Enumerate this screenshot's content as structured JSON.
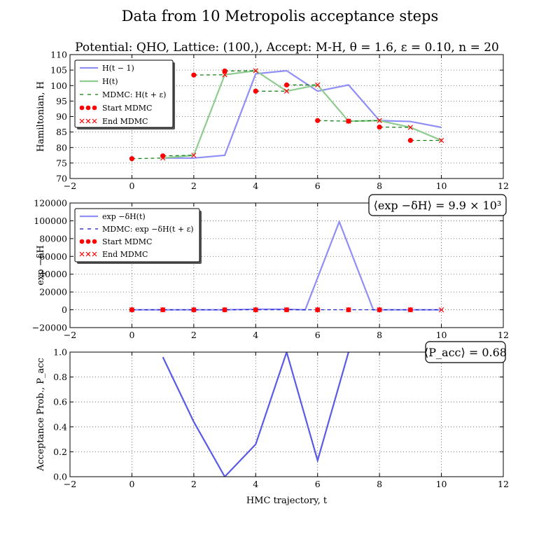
{
  "figure": {
    "title": "Data from 10 Metropolis acceptance steps",
    "subtitle": "Potential: QHO, Lattice: (100,), Accept: M-H, θ = 1.6, ε = 0.10, n = 20"
  },
  "colors": {
    "h_prev": "#8f8ff5",
    "h_curr": "#8fcc8f",
    "mdmc_green": "#0a7a0a",
    "mdmc_blue": "#1010c8",
    "marker": "#ff0000",
    "acc": "#5a5ae6",
    "grid": "#555555"
  },
  "chart_data": [
    {
      "type": "line",
      "panel": "hamiltonian",
      "xlabel": "",
      "ylabel": "Hamiltonian, H",
      "xlim": [
        -2,
        12
      ],
      "ylim": [
        70,
        110
      ],
      "xticks": [
        -2,
        0,
        2,
        4,
        6,
        8,
        10,
        12
      ],
      "yticks": [
        70,
        75,
        80,
        85,
        90,
        95,
        100,
        105,
        110
      ],
      "grid": true,
      "legend_position": "top-left",
      "series": [
        {
          "name": "H(t − 1)",
          "style": "line",
          "x": [
            1,
            2,
            3,
            4,
            5,
            6,
            7,
            8,
            9,
            10
          ],
          "y": [
            76.6,
            76.6,
            77.5,
            103.8,
            104.8,
            98.2,
            100.2,
            88.7,
            88.4,
            86.5
          ]
        },
        {
          "name": "H(t)",
          "style": "line",
          "x": [
            1,
            2,
            3,
            4,
            5,
            6,
            7,
            8,
            9,
            10
          ],
          "y": [
            76.6,
            77.5,
            103.5,
            104.8,
            98.2,
            100.2,
            88.5,
            88.7,
            86.5,
            82.3
          ]
        },
        {
          "name": "MDMC: H(t + ε)",
          "style": "dashed-segments",
          "segments": [
            [
              0,
              76.4,
              1,
              76.6
            ],
            [
              1,
              77.3,
              2,
              77.5
            ],
            [
              2,
              103.4,
              3,
              103.5
            ],
            [
              3,
              104.7,
              4,
              104.8
            ],
            [
              4,
              98.2,
              5,
              98.2
            ],
            [
              5,
              100.2,
              6,
              100.2
            ],
            [
              6,
              88.7,
              7,
              88.5
            ],
            [
              7,
              88.5,
              8,
              88.7
            ],
            [
              8,
              86.6,
              9,
              86.5
            ],
            [
              9,
              82.3,
              10,
              82.3
            ]
          ]
        },
        {
          "name": "Start MDMC",
          "style": "points",
          "x": [
            0,
            1,
            2,
            3,
            4,
            5,
            6,
            7,
            8,
            9
          ],
          "y": [
            76.4,
            77.3,
            103.4,
            104.7,
            98.2,
            100.2,
            88.7,
            88.5,
            86.6,
            82.3
          ]
        },
        {
          "name": "End MDMC",
          "style": "crosses",
          "x": [
            1,
            2,
            3,
            4,
            5,
            6,
            7,
            8,
            9,
            10
          ],
          "y": [
            76.6,
            77.5,
            103.5,
            104.8,
            98.2,
            100.2,
            88.5,
            88.7,
            86.5,
            82.3
          ]
        }
      ]
    },
    {
      "type": "line",
      "panel": "boltzmann",
      "xlabel": "",
      "ylabel": "exp −δH",
      "xlim": [
        -2,
        12
      ],
      "ylim": [
        -20000,
        120000
      ],
      "xticks": [
        -2,
        0,
        2,
        4,
        6,
        8,
        10,
        12
      ],
      "yticks": [
        -20000,
        0,
        20000,
        40000,
        60000,
        80000,
        100000,
        120000
      ],
      "grid": true,
      "legend_position": "top-left",
      "annotation": "⟨exp −δH⟩ = 9.9 × 10³",
      "series": [
        {
          "name": "exp −δH(t)",
          "style": "line",
          "x": [
            0,
            1,
            2,
            3,
            4,
            5,
            5.6,
            6.7,
            7.8,
            8,
            9,
            10
          ],
          "y": [
            0,
            0,
            0,
            0,
            700,
            700,
            0,
            99000,
            0,
            0,
            0,
            0
          ]
        },
        {
          "name": "MDMC: exp −δH(t + ε)",
          "style": "dashed",
          "x": [
            0,
            10
          ],
          "y": [
            0,
            0
          ]
        },
        {
          "name": "Start MDMC",
          "style": "points",
          "x": [
            0,
            1,
            2,
            3,
            4,
            5,
            6,
            7,
            8,
            9
          ],
          "y": [
            0,
            0,
            0,
            0,
            0,
            0,
            0,
            0,
            0,
            0
          ]
        },
        {
          "name": "End MDMC",
          "style": "crosses",
          "x": [
            0,
            1,
            2,
            3,
            4,
            5,
            6,
            7,
            8,
            9,
            10
          ],
          "y": [
            0,
            0,
            0,
            0,
            0,
            0,
            0,
            0,
            0,
            0,
            0
          ]
        }
      ]
    },
    {
      "type": "line",
      "panel": "acceptance",
      "xlabel": "HMC trajectory, t",
      "ylabel": "Acceptance Prob., P_acc",
      "xlim": [
        -2,
        12
      ],
      "ylim": [
        0,
        1
      ],
      "xticks": [
        -2,
        0,
        2,
        4,
        6,
        8,
        10,
        12
      ],
      "yticks": [
        0.0,
        0.2,
        0.4,
        0.6,
        0.8,
        1.0
      ],
      "grid": true,
      "annotation": "⟨P_acc⟩ = 0.68",
      "series": [
        {
          "name": "",
          "style": "line",
          "x": [
            1,
            2,
            3,
            4,
            5,
            6,
            7
          ],
          "y": [
            0.96,
            0.44,
            0.0,
            0.26,
            1.0,
            0.13,
            1.0
          ]
        }
      ]
    }
  ]
}
